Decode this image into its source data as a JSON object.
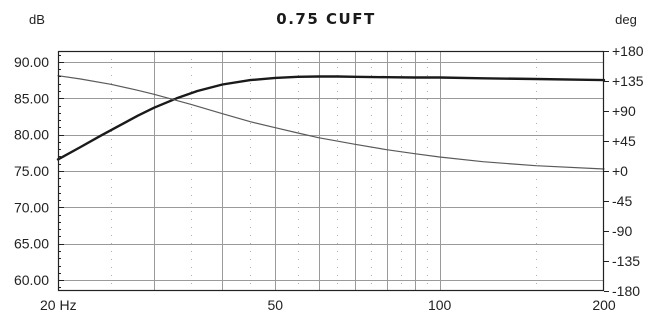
{
  "chart_data": {
    "type": "line",
    "title": "0.75 CUFT",
    "left_axis": {
      "unit_label": "dB",
      "range": [
        58.5,
        91.5
      ],
      "ticks": [
        60,
        65,
        70,
        75,
        80,
        85,
        90
      ],
      "tick_labels": [
        "60.00",
        "65.00",
        "70.00",
        "75.00",
        "80.00",
        "85.00",
        "90.00"
      ]
    },
    "right_axis": {
      "unit_label": "deg",
      "range": [
        -180,
        180
      ],
      "ticks": [
        180,
        135,
        90,
        45,
        0,
        -45,
        -90,
        -135,
        -180
      ],
      "tick_labels": [
        "+180",
        "+135",
        "+90",
        "+45",
        "+0",
        "-45",
        "-90",
        "-135",
        "-180"
      ]
    },
    "x_axis": {
      "scale": "log",
      "range": [
        20,
        200
      ],
      "ticks": [
        20,
        50,
        100,
        200
      ],
      "tick_labels": [
        "20 Hz",
        "50",
        "100",
        "200"
      ]
    },
    "grid": true,
    "series": [
      {
        "axis": "left",
        "color": "#1a1a1a",
        "points": [
          [
            20,
            76.6
          ],
          [
            22,
            78.3
          ],
          [
            24,
            79.9
          ],
          [
            26,
            81.3
          ],
          [
            28,
            82.6
          ],
          [
            30,
            83.7
          ],
          [
            33,
            85.0
          ],
          [
            36,
            86.0
          ],
          [
            40,
            86.9
          ],
          [
            45,
            87.5
          ],
          [
            50,
            87.8
          ],
          [
            55,
            87.95
          ],
          [
            60,
            88.0
          ],
          [
            65,
            88.0
          ],
          [
            70,
            87.95
          ],
          [
            80,
            87.9
          ],
          [
            90,
            87.85
          ],
          [
            100,
            87.85
          ],
          [
            120,
            87.75
          ],
          [
            150,
            87.65
          ],
          [
            180,
            87.55
          ],
          [
            200,
            87.5
          ]
        ]
      },
      {
        "axis": "right",
        "color": "#5a5a5a",
        "points": [
          [
            20,
            143
          ],
          [
            22,
            138
          ],
          [
            25,
            130
          ],
          [
            28,
            121
          ],
          [
            30,
            115
          ],
          [
            35,
            100
          ],
          [
            40,
            86
          ],
          [
            45,
            74
          ],
          [
            50,
            65
          ],
          [
            55,
            57
          ],
          [
            60,
            50
          ],
          [
            70,
            40
          ],
          [
            80,
            32
          ],
          [
            90,
            26
          ],
          [
            100,
            21
          ],
          [
            120,
            14
          ],
          [
            150,
            8
          ],
          [
            200,
            3
          ]
        ]
      }
    ]
  }
}
